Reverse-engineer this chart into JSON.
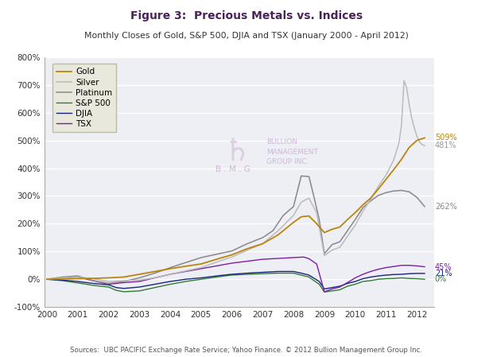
{
  "title": "Figure 3:  Precious Metals vs. Indices",
  "subtitle": "Monthly Closes of Gold, S&P 500, DJIA and TSX (January 2000 - April 2012)",
  "source": "Sources:  UBC PACIFIC Exchange Rate Service; Yahoo Finance. © 2012 Bullion Management Group Inc.",
  "ylim": [
    -100,
    800
  ],
  "yticks": [
    -100,
    0,
    100,
    200,
    300,
    400,
    500,
    600,
    700,
    800
  ],
  "end_labels": {
    "Gold": "509%",
    "Silver": "481%",
    "Platinum": "262%",
    "TSX": "45%",
    "DJIA": "21%",
    "SP500": "0%"
  },
  "colors": {
    "Gold": "#B8860B",
    "Silver": "#BBBBBB",
    "Platinum": "#888888",
    "SP500": "#2E7D32",
    "DJIA": "#1A237E",
    "TSX": "#7B1FA2"
  },
  "fig_facecolor": "#FFFFFF",
  "plot_facecolor": "#EEEEF5",
  "grid_color": "#FFFFFF",
  "legend_facecolor": "#E8E8DC",
  "legend_edgecolor": "#BBBBAA",
  "title_color": "#4A235A",
  "subtitle_color": "#333333",
  "source_color": "#555555",
  "watermark_color": "#C8B0D0",
  "gold_pts_x": [
    0,
    6,
    12,
    18,
    24,
    30,
    36,
    42,
    48,
    54,
    60,
    66,
    72,
    78,
    84,
    90,
    96,
    99,
    102,
    105,
    108,
    111,
    114,
    117,
    120,
    123,
    126,
    129,
    132,
    135,
    138,
    141,
    144,
    147
  ],
  "gold_pts_y": [
    0,
    1,
    2,
    3,
    5,
    8,
    18,
    28,
    38,
    47,
    55,
    72,
    88,
    110,
    128,
    160,
    205,
    225,
    228,
    200,
    168,
    180,
    188,
    215,
    240,
    268,
    292,
    325,
    360,
    395,
    432,
    475,
    500,
    509
  ],
  "silver_pts_x": [
    0,
    6,
    12,
    18,
    24,
    30,
    36,
    42,
    48,
    54,
    60,
    66,
    72,
    78,
    84,
    90,
    96,
    99,
    102,
    105,
    108,
    111,
    114,
    117,
    120,
    123,
    126,
    129,
    132,
    135,
    137,
    138,
    139,
    140,
    141,
    142,
    143,
    144,
    145,
    146,
    147
  ],
  "silver_pts_y": [
    0,
    5,
    8,
    2,
    -8,
    -5,
    -3,
    5,
    18,
    30,
    42,
    62,
    80,
    105,
    128,
    175,
    230,
    278,
    292,
    240,
    85,
    105,
    115,
    155,
    195,
    245,
    288,
    335,
    375,
    430,
    490,
    555,
    715,
    690,
    630,
    580,
    545,
    515,
    495,
    485,
    481
  ],
  "plat_pts_x": [
    0,
    6,
    12,
    18,
    24,
    30,
    36,
    42,
    48,
    54,
    60,
    66,
    72,
    78,
    84,
    88,
    92,
    96,
    99,
    102,
    104,
    106,
    108,
    111,
    114,
    117,
    120,
    123,
    126,
    129,
    132,
    135,
    138,
    141,
    144,
    147
  ],
  "plat_pts_y": [
    0,
    8,
    12,
    -5,
    -15,
    -8,
    5,
    22,
    42,
    60,
    78,
    90,
    102,
    128,
    150,
    175,
    230,
    262,
    372,
    370,
    295,
    215,
    92,
    125,
    135,
    175,
    215,
    258,
    282,
    302,
    312,
    318,
    320,
    315,
    295,
    262
  ],
  "sp500_pts_x": [
    0,
    6,
    12,
    18,
    24,
    27,
    30,
    36,
    42,
    48,
    54,
    60,
    66,
    72,
    78,
    84,
    90,
    96,
    99,
    102,
    106,
    108,
    111,
    114,
    117,
    120,
    123,
    126,
    129,
    132,
    135,
    138,
    141,
    144,
    147
  ],
  "sp500_pts_y": [
    0,
    -5,
    -13,
    -22,
    -28,
    -40,
    -45,
    -42,
    -30,
    -18,
    -8,
    0,
    8,
    15,
    18,
    20,
    22,
    22,
    15,
    8,
    -18,
    -46,
    -42,
    -38,
    -25,
    -18,
    -8,
    -5,
    0,
    2,
    3,
    5,
    3,
    2,
    0
  ],
  "djia_pts_x": [
    0,
    6,
    12,
    18,
    24,
    27,
    30,
    36,
    42,
    48,
    54,
    60,
    66,
    72,
    78,
    84,
    90,
    96,
    99,
    102,
    106,
    108,
    111,
    114,
    117,
    120,
    123,
    126,
    129,
    132,
    135,
    138,
    141,
    144,
    147
  ],
  "djia_pts_y": [
    0,
    -3,
    -8,
    -15,
    -20,
    -30,
    -33,
    -28,
    -18,
    -8,
    0,
    5,
    12,
    18,
    22,
    25,
    28,
    28,
    22,
    15,
    -8,
    -35,
    -30,
    -25,
    -15,
    -8,
    2,
    8,
    12,
    15,
    17,
    18,
    20,
    21,
    21
  ],
  "tsx_pts_x": [
    0,
    6,
    12,
    18,
    24,
    30,
    36,
    42,
    48,
    54,
    60,
    66,
    72,
    78,
    84,
    90,
    96,
    100,
    102,
    105,
    108,
    111,
    114,
    117,
    120,
    123,
    126,
    129,
    132,
    135,
    138,
    141,
    144,
    147
  ],
  "tsx_pts_y": [
    0,
    5,
    8,
    -5,
    -18,
    -12,
    -8,
    5,
    18,
    28,
    38,
    48,
    58,
    65,
    72,
    75,
    78,
    80,
    74,
    55,
    -45,
    -35,
    -28,
    -12,
    5,
    18,
    28,
    36,
    42,
    46,
    50,
    50,
    48,
    45
  ]
}
